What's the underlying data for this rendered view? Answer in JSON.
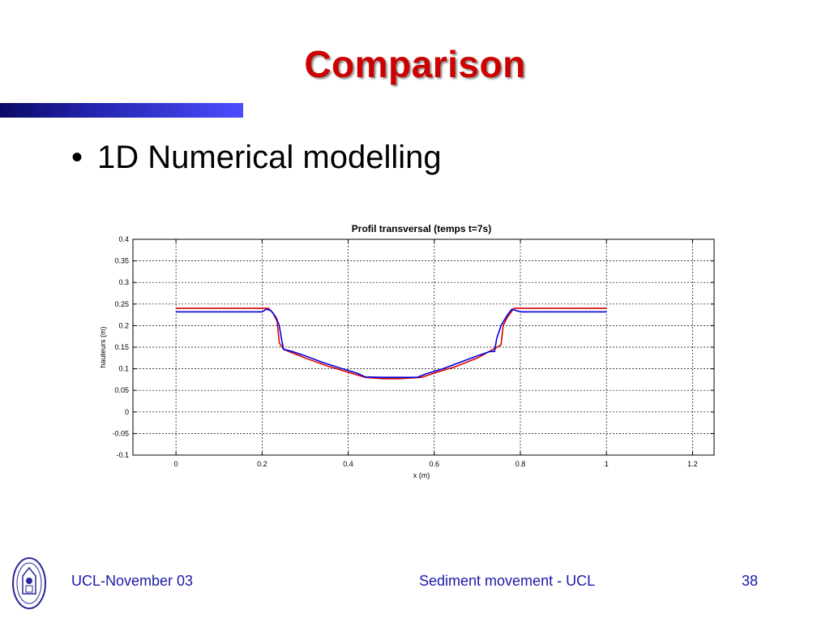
{
  "slide": {
    "title": "Comparison",
    "bullet": "1D Numerical modelling",
    "bullet_marker": "•",
    "accent_color": "#cc0000",
    "bar_color": "#2222aa"
  },
  "footer": {
    "left": "UCL-November 03",
    "center": "Sediment movement - UCL",
    "page_number": "38",
    "text_color": "#1a1aa6",
    "logo_icon": "university-seal-icon"
  },
  "chart_data": {
    "type": "line",
    "title": "Profil transversal (temps t=7s)",
    "xlabel": "x (m)",
    "ylabel": "hauteurs (m)",
    "xlim": [
      -0.1,
      1.25
    ],
    "ylim": [
      -0.1,
      0.4
    ],
    "x_ticks": [
      0,
      0.2,
      0.4,
      0.6,
      0.8,
      1,
      1.2
    ],
    "x_tick_labels": [
      "0",
      "0.2",
      "0.4",
      "0.6",
      "0.8",
      "1",
      "1.2"
    ],
    "y_ticks": [
      -0.1,
      -0.05,
      0,
      0.05,
      0.1,
      0.15,
      0.2,
      0.25,
      0.3,
      0.35,
      0.4
    ],
    "y_tick_labels": [
      "-0.1",
      "-0.05",
      "0",
      "0.05",
      "0.1",
      "0.15",
      "0.2",
      "0.25",
      "0.3",
      "0.35",
      "0.4"
    ],
    "grid": true,
    "grid_style": "dotted",
    "series": [
      {
        "color": "#dd0000",
        "points": [
          [
            0,
            0.24
          ],
          [
            0.2,
            0.24
          ],
          [
            0.215,
            0.24
          ],
          [
            0.225,
            0.23
          ],
          [
            0.235,
            0.21
          ],
          [
            0.24,
            0.16
          ],
          [
            0.25,
            0.145
          ],
          [
            0.3,
            0.125
          ],
          [
            0.35,
            0.107
          ],
          [
            0.4,
            0.092
          ],
          [
            0.44,
            0.08
          ],
          [
            0.48,
            0.077
          ],
          [
            0.52,
            0.077
          ],
          [
            0.57,
            0.08
          ],
          [
            0.6,
            0.09
          ],
          [
            0.65,
            0.105
          ],
          [
            0.7,
            0.125
          ],
          [
            0.755,
            0.155
          ],
          [
            0.76,
            0.2
          ],
          [
            0.77,
            0.22
          ],
          [
            0.785,
            0.24
          ],
          [
            0.8,
            0.24
          ],
          [
            1.0,
            0.24
          ]
        ]
      },
      {
        "color": "#0000dd",
        "points": [
          [
            0,
            0.232
          ],
          [
            0.2,
            0.232
          ],
          [
            0.21,
            0.238
          ],
          [
            0.22,
            0.235
          ],
          [
            0.232,
            0.22
          ],
          [
            0.24,
            0.2
          ],
          [
            0.245,
            0.17
          ],
          [
            0.25,
            0.145
          ],
          [
            0.27,
            0.14
          ],
          [
            0.3,
            0.13
          ],
          [
            0.34,
            0.115
          ],
          [
            0.38,
            0.102
          ],
          [
            0.42,
            0.09
          ],
          [
            0.44,
            0.081
          ],
          [
            0.48,
            0.08
          ],
          [
            0.52,
            0.08
          ],
          [
            0.56,
            0.08
          ],
          [
            0.58,
            0.088
          ],
          [
            0.62,
            0.1
          ],
          [
            0.66,
            0.115
          ],
          [
            0.7,
            0.13
          ],
          [
            0.73,
            0.14
          ],
          [
            0.74,
            0.14
          ],
          [
            0.745,
            0.17
          ],
          [
            0.755,
            0.2
          ],
          [
            0.77,
            0.225
          ],
          [
            0.78,
            0.238
          ],
          [
            0.79,
            0.235
          ],
          [
            0.8,
            0.232
          ],
          [
            1.0,
            0.232
          ]
        ]
      }
    ]
  }
}
